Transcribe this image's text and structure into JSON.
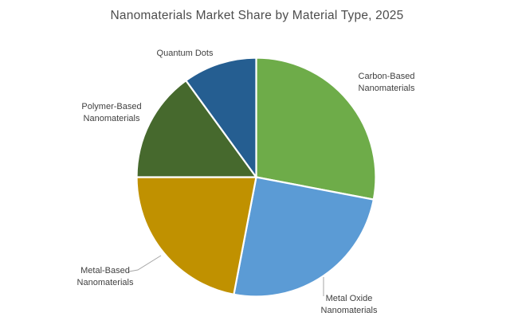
{
  "chart_data": {
    "type": "pie",
    "title": "Nanomaterials Market Share by Material Type, 2025",
    "legend": "none",
    "direction": "clockwise",
    "start_angle_deg": 0,
    "values_unit": "% market share (estimated from slice angles; no numeric labels shown)",
    "slices": [
      {
        "name": "Carbon-Based Nanomaterials",
        "label": "Carbon-Based\nNanomaterials",
        "value": 28,
        "color": "#6EAC49"
      },
      {
        "name": "Metal Oxide Nanomaterials",
        "label": "Metal Oxide\nNanomaterials",
        "value": 25,
        "color": "#5B9BD5"
      },
      {
        "name": "Metal-Based Nanomaterials",
        "label": "Metal-Based\nNanomaterials",
        "value": 22,
        "color": "#C09100"
      },
      {
        "name": "Polymer-Based Nanomaterials",
        "label": "Polymer-Based\nNanomaterials",
        "value": 15,
        "color": "#46692D"
      },
      {
        "name": "Quantum Dots",
        "label": "Quantum Dots",
        "value": 10,
        "color": "#255E91"
      }
    ],
    "colors": {
      "title_text": "#4D4D4D",
      "label_text": "#404040",
      "leader_line": "#A6A6A6",
      "slice_border": "#FFFFFF",
      "background": "#FFFFFF"
    }
  }
}
